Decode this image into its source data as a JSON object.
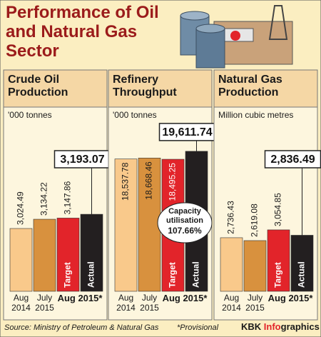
{
  "title": "Performance of Oil and Natural Gas Sector",
  "source": "Source: Ministry of Petroleum & Natural Gas",
  "note": "*Provisional",
  "credit": [
    "KBK",
    "Info",
    "graphics"
  ],
  "chart_data": [
    {
      "type": "bar",
      "title": "Crude Oil Production",
      "subtitle": "'000 tonnes",
      "categories": [
        "Aug 2014",
        "July 2015",
        "Target",
        "Actual"
      ],
      "group_label": "Aug 2015*",
      "values": [
        3024.49,
        3134.22,
        3147.86,
        3193.07
      ],
      "value_labels": [
        "3,024.49",
        "3,134.22",
        "3,147.86",
        "3,193.07"
      ],
      "colors": [
        "#f9c98b",
        "#d8913e",
        "#e2242a",
        "#231f20"
      ],
      "ylim": [
        2280,
        4040
      ],
      "value_label_position": "outside"
    },
    {
      "type": "bar",
      "title": "Refinery Throughput",
      "subtitle": "'000 tonnes",
      "categories": [
        "Aug 2014",
        "July 2015",
        "Target",
        "Actual"
      ],
      "group_label": "Aug 2015*",
      "values": [
        18537.78,
        18668.46,
        18495.25,
        19611.74
      ],
      "value_labels": [
        "18,537.78",
        "18,668.46",
        "18,495.25",
        "19,611.74"
      ],
      "colors": [
        "#f9c98b",
        "#d8913e",
        "#e2242a",
        "#231f20"
      ],
      "ylim": [
        0,
        20800
      ],
      "value_label_position": "inside",
      "annotation": "Capacity utilisation",
      "annotation_value": "107.66%"
    },
    {
      "type": "bar",
      "title": "Natural Gas Production",
      "subtitle": "Million cubic metres",
      "categories": [
        "Aug 2014",
        "July 2015",
        "Target",
        "Actual"
      ],
      "group_label": "Aug 2015*",
      "values": [
        2736.43,
        2619.08,
        3054.85,
        2836.49
      ],
      "value_labels": [
        "2,736.43",
        "2,619.08",
        "3,054.85",
        "2,836.49"
      ],
      "colors": [
        "#f9c98b",
        "#d8913e",
        "#e2242a",
        "#231f20"
      ],
      "ylim": [
        560,
        6590
      ],
      "value_label_position": "outside"
    }
  ]
}
